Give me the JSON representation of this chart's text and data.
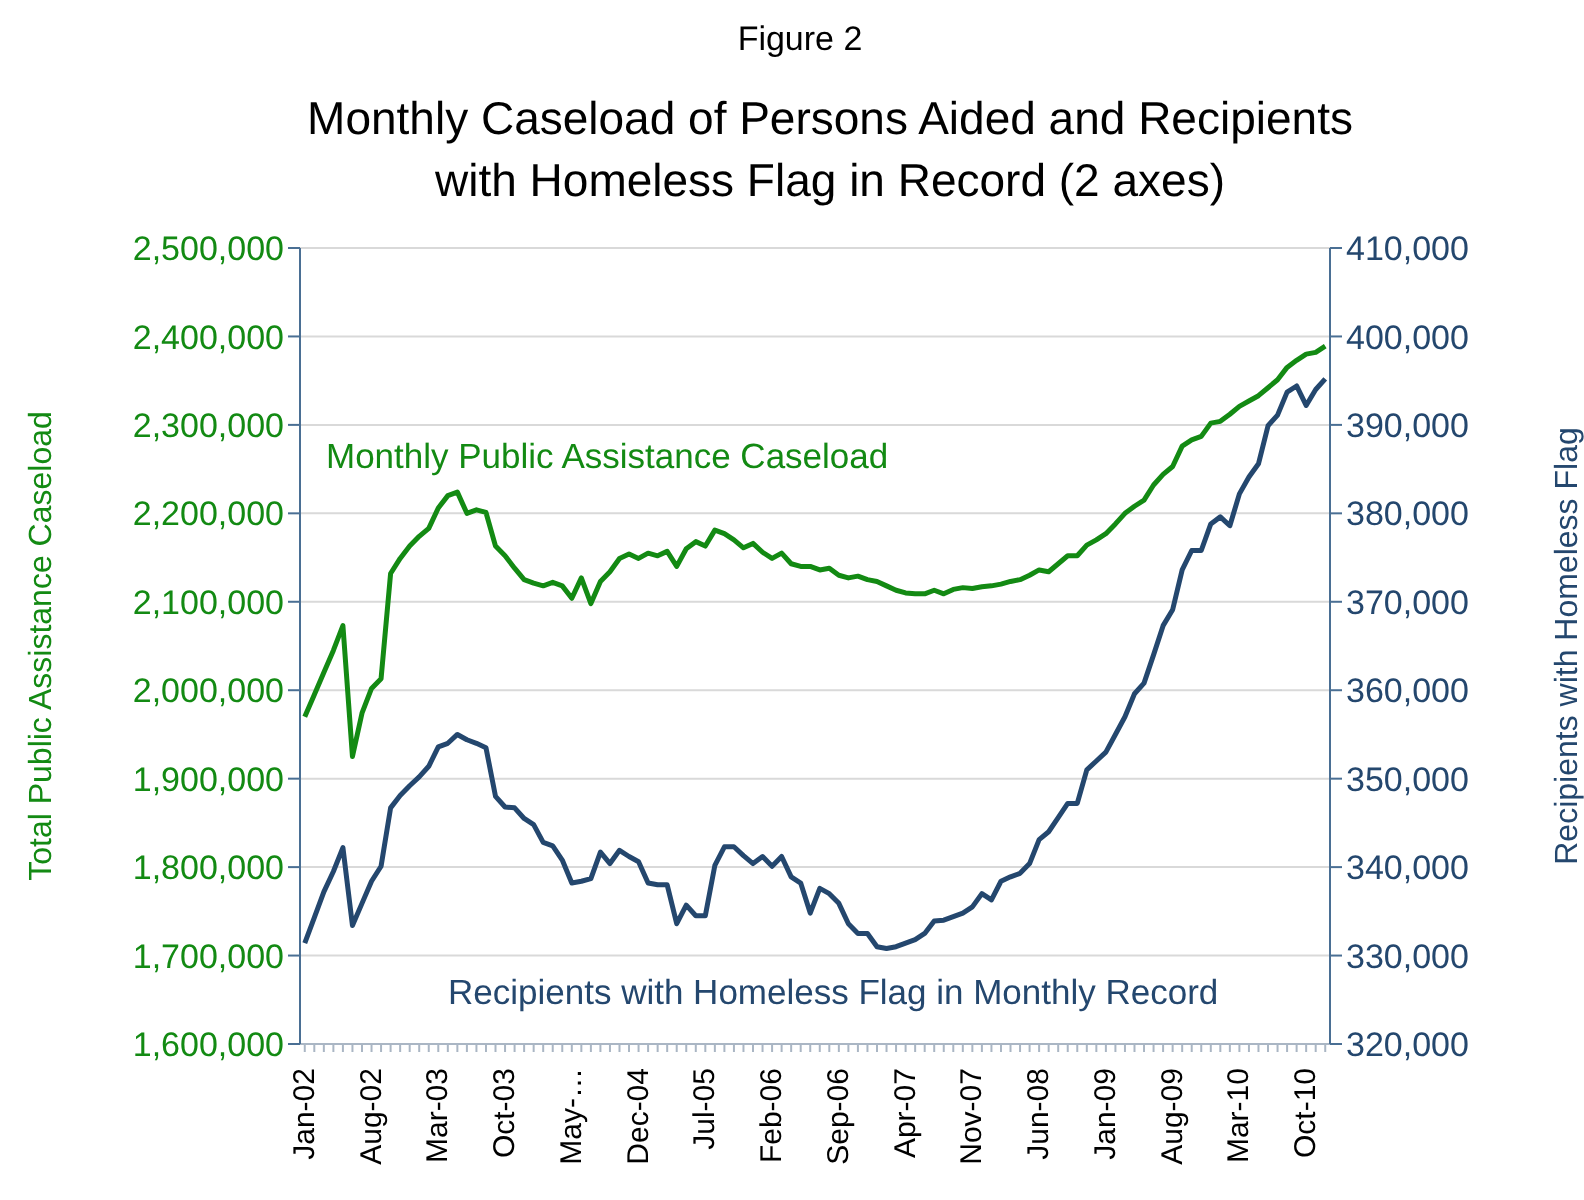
{
  "chart_data": {
    "type": "line",
    "title": "Monthly Caseload of Persons Aided and Recipients with Homeless Flag in Record (2 axes)",
    "annotations": [
      "Figure 2"
    ],
    "ylabel": "Total Public Assistance Caseload",
    "y2label": "Recipients with Homeless Flag",
    "categories": [
      "Jan-02",
      null,
      null,
      null,
      null,
      null,
      null,
      "Aug-02",
      null,
      null,
      null,
      null,
      null,
      null,
      "Mar-03",
      null,
      null,
      null,
      null,
      null,
      null,
      "Oct-03",
      null,
      null,
      null,
      null,
      null,
      null,
      "May-…",
      null,
      null,
      null,
      null,
      null,
      null,
      "Dec-04",
      null,
      null,
      null,
      null,
      null,
      null,
      "Jul-05",
      null,
      null,
      null,
      null,
      null,
      null,
      "Feb-06",
      null,
      null,
      null,
      null,
      null,
      null,
      "Sep-06",
      null,
      null,
      null,
      null,
      null,
      null,
      "Apr-07",
      null,
      null,
      null,
      null,
      null,
      null,
      "Nov-07",
      null,
      null,
      null,
      null,
      null,
      null,
      "Jun-08",
      null,
      null,
      null,
      null,
      null,
      null,
      "Jan-09",
      null,
      null,
      null,
      null,
      null,
      null,
      "Aug-09",
      null,
      null,
      null,
      null,
      null,
      null,
      "Mar-10",
      null,
      null,
      null,
      null,
      null,
      null,
      "Oct-10",
      null,
      null
    ],
    "series": [
      {
        "name": "Monthly Public Assistance Caseload",
        "color": "#138a13",
        "values": [
          1970000,
          1995000,
          2020000,
          2045000,
          2073000,
          1925000,
          1974000,
          2002000,
          2013000,
          2132000,
          2149000,
          2163000,
          2174000,
          2183000,
          2206000,
          2220000,
          2224000,
          2200000,
          2204000,
          2201000,
          2163000,
          2152000,
          2138000,
          2125000,
          2121000,
          2118000,
          2122000,
          2118000,
          2104000,
          2127000,
          2098000,
          2123000,
          2134000,
          2149000,
          2154000,
          2149000,
          2155000,
          2152000,
          2157000,
          2140000,
          2160000,
          2168000,
          2163000,
          2181000,
          2177000,
          2170000,
          2161000,
          2166000,
          2156000,
          2149000,
          2155000,
          2143000,
          2140000,
          2140000,
          2136000,
          2138000,
          2130000,
          2127000,
          2129000,
          2125000,
          2123000,
          2118000,
          2113000,
          2110000,
          2109000,
          2109000,
          2113000,
          2109000,
          2114000,
          2116000,
          2115000,
          2117000,
          2118000,
          2120000,
          2123000,
          2125000,
          2130000,
          2136000,
          2134000,
          2143000,
          2152000,
          2152000,
          2164000,
          2170000,
          2177000,
          2188000,
          2200000,
          2208000,
          2215000,
          2232000,
          2244000,
          2253000,
          2276000,
          2283000,
          2287000,
          2302000,
          2304000,
          2312000,
          2321000,
          2327000,
          2333000,
          2342000,
          2351000,
          2365000,
          2373000,
          2380000,
          2382000,
          2389000
        ]
      },
      {
        "name": "Recipients with Homeless Flag in Monthly Record",
        "color": "#24476e",
        "axis": "y2",
        "values": [
          331400,
          334300,
          337200,
          339500,
          342200,
          333400,
          335900,
          338400,
          340100,
          346700,
          348100,
          349200,
          350200,
          351400,
          353600,
          354000,
          355000,
          354400,
          354000,
          353500,
          348000,
          346800,
          346700,
          345500,
          344800,
          342800,
          342400,
          340800,
          338200,
          338400,
          338700,
          341700,
          340400,
          341900,
          341200,
          340600,
          338200,
          338000,
          338000,
          333600,
          335700,
          334500,
          334500,
          340200,
          342300,
          342300,
          341300,
          340400,
          341200,
          340100,
          341200,
          338900,
          338200,
          334800,
          337600,
          337000,
          335900,
          333600,
          332500,
          332500,
          331000,
          330800,
          331000,
          331400,
          331800,
          332500,
          333900,
          334000,
          334400,
          334800,
          335500,
          337000,
          336300,
          338400,
          338900,
          339300,
          340400,
          343100,
          344000,
          345600,
          347200,
          347200,
          351000,
          352000,
          353000,
          355000,
          357000,
          359600,
          360800,
          364000,
          367300,
          369100,
          373600,
          375800,
          375800,
          378800,
          379600,
          378600,
          382200,
          384100,
          385600,
          389900,
          391100,
          393700,
          394400,
          392200,
          394000,
          395200
        ]
      }
    ],
    "ylim": [
      1600000,
      2500000
    ],
    "yticks": [
      {
        "value": 1600000,
        "label": "1,600,000"
      },
      {
        "value": 1700000,
        "label": "1,700,000"
      },
      {
        "value": 1800000,
        "label": "1,800,000"
      },
      {
        "value": 1900000,
        "label": "1,900,000"
      },
      {
        "value": 2000000,
        "label": "2,000,000"
      },
      {
        "value": 2100000,
        "label": "2,100,000"
      },
      {
        "value": 2200000,
        "label": "2,200,000"
      },
      {
        "value": 2300000,
        "label": "2,300,000"
      },
      {
        "value": 2400000,
        "label": "2,400,000"
      },
      {
        "value": 2500000,
        "label": "2,500,000"
      }
    ],
    "y2lim": [
      320000,
      410000
    ],
    "y2ticks": [
      {
        "value": 320000,
        "label": "320,000"
      },
      {
        "value": 330000,
        "label": "330,000"
      },
      {
        "value": 340000,
        "label": "340,000"
      },
      {
        "value": 350000,
        "label": "350,000"
      },
      {
        "value": 360000,
        "label": "360,000"
      },
      {
        "value": 370000,
        "label": "370,000"
      },
      {
        "value": 380000,
        "label": "380,000"
      },
      {
        "value": 390000,
        "label": "390,000"
      },
      {
        "value": 400000,
        "label": "400,000"
      },
      {
        "value": 410000,
        "label": "410,000"
      }
    ],
    "grid": "y",
    "marker": "none",
    "line_style": "solid"
  }
}
